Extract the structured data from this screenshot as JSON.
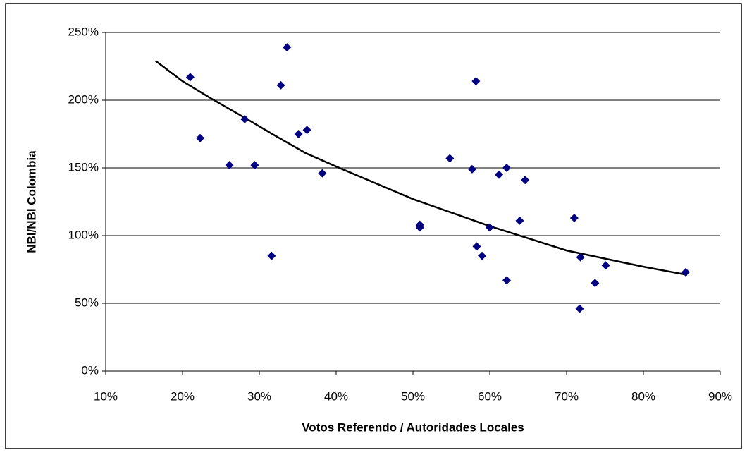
{
  "chart_data": {
    "type": "scatter",
    "xlabel": "Votos Referendo / Autoridades Locales",
    "ylabel": "NBI/NBI Colombia",
    "color": "#000080",
    "x": [
      21.0,
      22.3,
      26.1,
      29.4,
      28.1,
      31.6,
      32.8,
      33.6,
      35.1,
      36.2,
      38.2,
      50.9,
      50.9,
      54.8,
      57.7,
      58.2,
      58.3,
      59.0,
      60.0,
      61.2,
      62.2,
      62.2,
      63.9,
      64.6,
      71.0,
      71.7,
      71.8,
      73.7,
      75.1,
      85.5
    ],
    "values": [
      217,
      172,
      152,
      152,
      186,
      85,
      211,
      239,
      175,
      178,
      146,
      108,
      106,
      157,
      149,
      214,
      92,
      85,
      106,
      145,
      150,
      67,
      111,
      141,
      113,
      46,
      84,
      65,
      78,
      73
    ],
    "trendline": {
      "color": "#000000",
      "x": [
        16.5,
        20,
        23.8,
        28.1,
        32,
        36,
        40,
        45,
        50,
        55,
        60,
        65,
        70,
        75,
        80,
        85.7
      ],
      "values": [
        229,
        214,
        201,
        187,
        174,
        161,
        151,
        139,
        127,
        117,
        107,
        98,
        89,
        83,
        77,
        71
      ]
    },
    "xlim": [
      10,
      90
    ],
    "xticks": [
      {
        "value": 10,
        "label": "10%"
      },
      {
        "value": 20,
        "label": "20%"
      },
      {
        "value": 30,
        "label": "30%"
      },
      {
        "value": 40,
        "label": "40%"
      },
      {
        "value": 50,
        "label": "50%"
      },
      {
        "value": 60,
        "label": "60%"
      },
      {
        "value": 70,
        "label": "70%"
      },
      {
        "value": 80,
        "label": "80%"
      },
      {
        "value": 90,
        "label": "90%"
      }
    ],
    "ylim": [
      0,
      250
    ],
    "yticks": [
      {
        "value": 0,
        "label": "0%"
      },
      {
        "value": 50,
        "label": "50%"
      },
      {
        "value": 100,
        "label": "100%"
      },
      {
        "value": 150,
        "label": "150%"
      },
      {
        "value": 200,
        "label": "200%"
      },
      {
        "value": 250,
        "label": "250%"
      }
    ],
    "grid": true
  }
}
